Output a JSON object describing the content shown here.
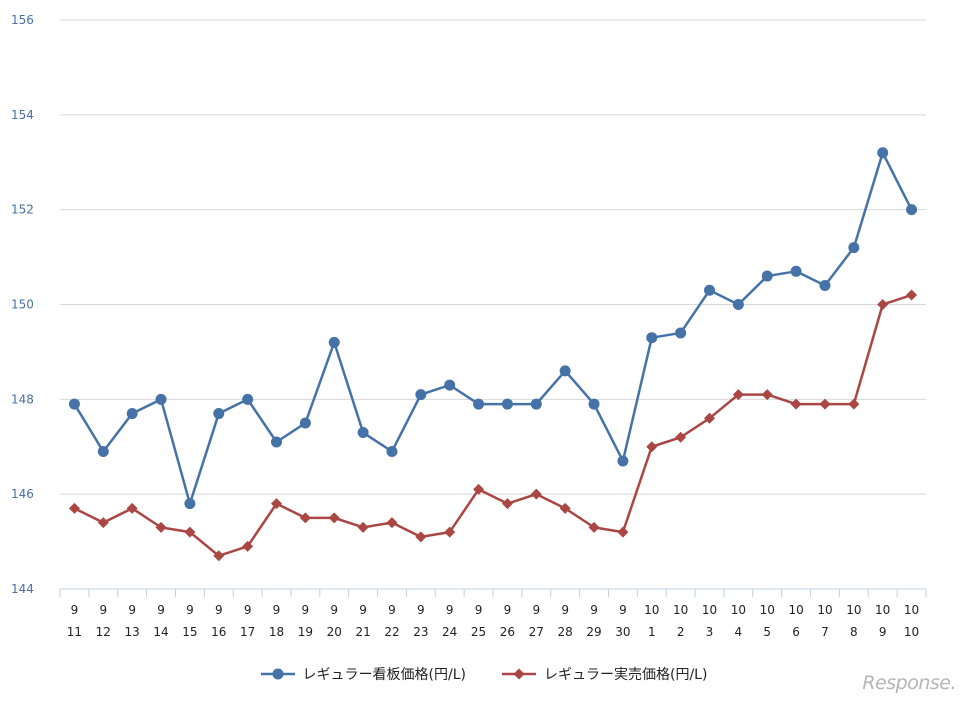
{
  "chart_data": {
    "type": "line",
    "categories": [
      [
        "9",
        "11"
      ],
      [
        "9",
        "12"
      ],
      [
        "9",
        "13"
      ],
      [
        "9",
        "14"
      ],
      [
        "9",
        "15"
      ],
      [
        "9",
        "16"
      ],
      [
        "9",
        "17"
      ],
      [
        "9",
        "18"
      ],
      [
        "9",
        "19"
      ],
      [
        "9",
        "20"
      ],
      [
        "9",
        "21"
      ],
      [
        "9",
        "22"
      ],
      [
        "9",
        "23"
      ],
      [
        "9",
        "24"
      ],
      [
        "9",
        "25"
      ],
      [
        "9",
        "26"
      ],
      [
        "9",
        "27"
      ],
      [
        "9",
        "28"
      ],
      [
        "9",
        "29"
      ],
      [
        "9",
        "30"
      ],
      [
        "10",
        "1"
      ],
      [
        "10",
        "2"
      ],
      [
        "10",
        "3"
      ],
      [
        "10",
        "4"
      ],
      [
        "10",
        "5"
      ],
      [
        "10",
        "6"
      ],
      [
        "10",
        "7"
      ],
      [
        "10",
        "8"
      ],
      [
        "10",
        "9"
      ],
      [
        "10",
        "10"
      ]
    ],
    "ylim": [
      144,
      156
    ],
    "yticks": [
      144,
      146,
      148,
      150,
      152,
      154,
      156
    ],
    "grid": true,
    "legend_position": "bottom",
    "series": [
      {
        "name": "レギュラー看板価格(円/L)",
        "color": "#4572a7",
        "marker": "circle",
        "values": [
          147.9,
          146.9,
          147.7,
          148.0,
          145.8,
          147.7,
          148.0,
          147.1,
          147.5,
          149.2,
          147.3,
          146.9,
          148.1,
          148.3,
          147.9,
          147.9,
          147.9,
          148.6,
          147.9,
          146.7,
          149.3,
          149.4,
          150.3,
          150.0,
          150.6,
          150.7,
          150.4,
          151.2,
          153.2,
          152.0
        ]
      },
      {
        "name": "レギュラー実売価格(円/L)",
        "color": "#aa4643",
        "marker": "diamond",
        "values": [
          145.7,
          145.4,
          145.7,
          145.3,
          145.2,
          144.7,
          144.9,
          145.8,
          145.5,
          145.5,
          145.3,
          145.4,
          145.1,
          145.2,
          146.1,
          145.8,
          146.0,
          145.7,
          145.3,
          145.2,
          147.0,
          147.2,
          147.6,
          148.1,
          148.1,
          147.9,
          147.9,
          147.9,
          150.0,
          150.2
        ]
      }
    ]
  },
  "watermark": "Response."
}
